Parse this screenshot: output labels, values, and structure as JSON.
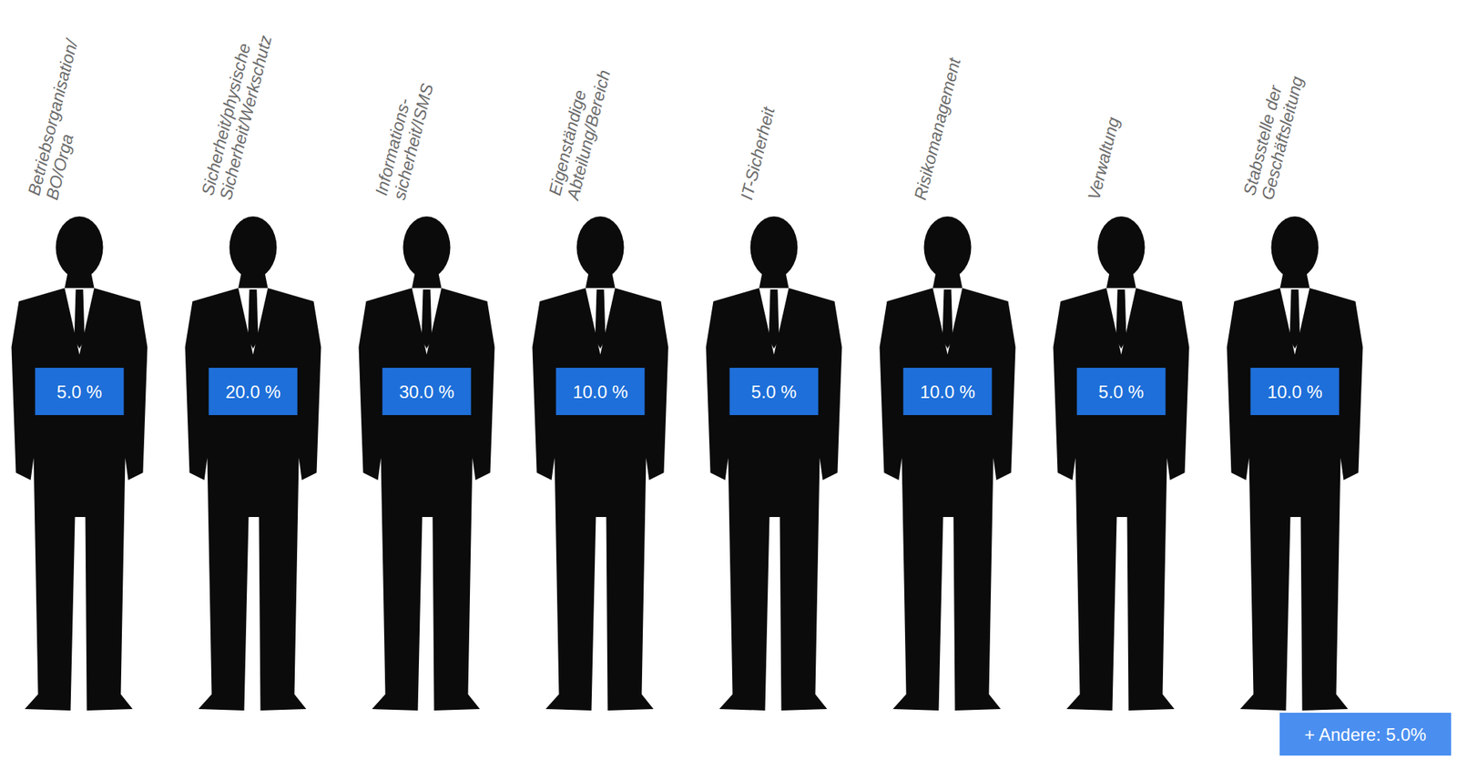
{
  "chart_data": {
    "type": "pictograph",
    "categories": [
      "Betriebsorganisation/\nBO/Orga",
      "Sicherheit/physische\nSicherheit/Werkschutz",
      "Informations-\nsicherheit/ISMS",
      "Eigenständige\nAbteilung/Bereich",
      "IT-Sicherheit",
      "Risikomanagement",
      "Verwaltung",
      "Stabsstelle der\nGeschäftsleitung"
    ],
    "values": [
      5,
      20,
      30,
      10,
      5,
      10,
      5,
      10
    ],
    "value_labels": [
      "5.0 %",
      "20.0 %",
      "30.0 %",
      "10.0 %",
      "5.0 %",
      "10.0 %",
      "5.0 %",
      "10.0 %"
    ],
    "data_labels": true,
    "color": "#1e6fd9",
    "annotations": [
      {
        "text": "+ Andere: 5.0%"
      }
    ]
  }
}
